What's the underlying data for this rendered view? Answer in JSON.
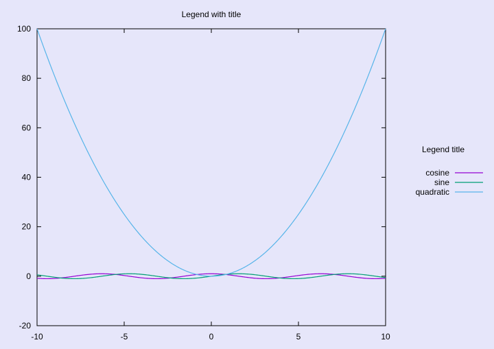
{
  "chart_data": {
    "type": "line",
    "title": "Legend with title",
    "xlabel": "",
    "ylabel": "",
    "xlim": [
      -10,
      10
    ],
    "ylim": [
      -20,
      100
    ],
    "x_ticks": [
      -10,
      -5,
      0,
      5,
      10
    ],
    "y_ticks": [
      -20,
      0,
      20,
      40,
      60,
      80,
      100
    ],
    "x_tick_labels": [
      "-10",
      "-5",
      "0",
      "5",
      "10"
    ],
    "y_tick_labels": [
      "-20",
      "0",
      "20",
      "40",
      "60",
      "80",
      "100"
    ],
    "grid": false,
    "legend": {
      "title": "Legend title",
      "placement": "right"
    },
    "background": "#e6e6fa",
    "series": [
      {
        "name": "cosine",
        "function": "cos(x)",
        "color": "#9400d3"
      },
      {
        "name": "sine",
        "function": "sin(x)",
        "color": "#009e73"
      },
      {
        "name": "quadratic",
        "function": "x**2",
        "color": "#56b4e9"
      }
    ]
  }
}
